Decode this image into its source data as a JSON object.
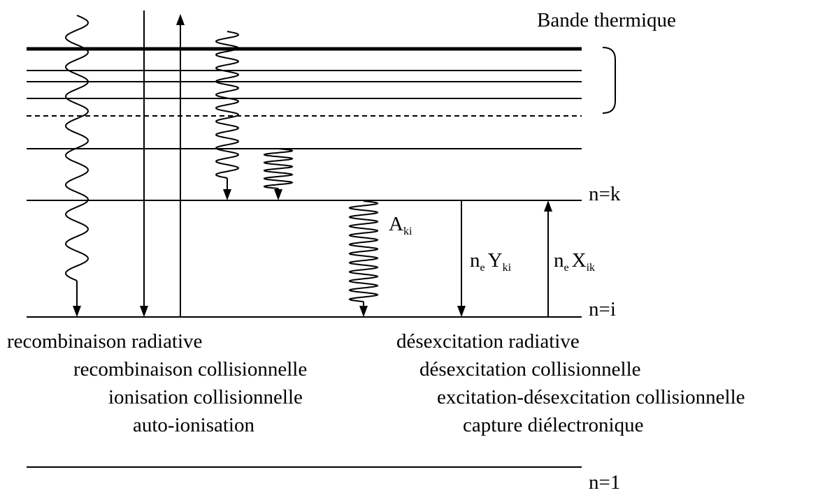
{
  "title": "Bande thermique",
  "levels": {
    "k": "n=k",
    "i": "n=i",
    "ground": "n=1"
  },
  "rates": {
    "radiative": {
      "symbol": "A",
      "sub": "ki"
    },
    "deexcitation": {
      "n": "n",
      "n_sub": "e",
      "symbol": "Y",
      "sub": "ki"
    },
    "excitation": {
      "n": "n",
      "n_sub": "e",
      "symbol": "X",
      "sub": "ik"
    }
  },
  "processes_left": [
    "recombinaison radiative",
    "recombinaison collisionnelle",
    "ionisation collisionnelle",
    "auto-ionisation"
  ],
  "processes_right": [
    "désexcitation radiative",
    "désexcitation collisionnelle",
    "excitation-désexcitation collisionnelle",
    "capture diélectronique"
  ]
}
